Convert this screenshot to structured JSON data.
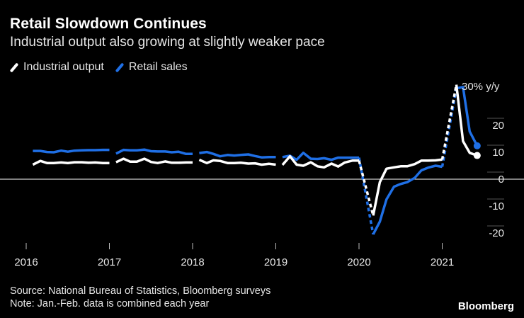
{
  "title": "Retail Slowdown Continues",
  "subtitle": "Industrial output also growing at slightly weaker pace",
  "legend": [
    {
      "label": "Industrial output",
      "color": "#ffffff"
    },
    {
      "label": "Retail sales",
      "color": "#1f6fe5"
    }
  ],
  "source": "Source: National Bureau of Statistics, Bloomberg surveys",
  "note": "Note: Jan.-Feb. data is combined each year",
  "brand": "Bloomberg",
  "chart_data": {
    "type": "line",
    "title": "Retail Slowdown Continues",
    "ylabel": "30% y/y",
    "ylim": [
      -25,
      32
    ],
    "yticks": [
      {
        "v": 20,
        "label": "20"
      },
      {
        "v": 10,
        "label": "10"
      },
      {
        "v": 0,
        "label": "0"
      },
      {
        "v": -10,
        "label": "-10"
      },
      {
        "v": -20,
        "label": "-20"
      }
    ],
    "xlim": [
      2016.0,
      2021.5
    ],
    "xticks": [
      {
        "v": 2016,
        "label": "2016"
      },
      {
        "v": 2017,
        "label": "2017"
      },
      {
        "v": 2018,
        "label": "2018"
      },
      {
        "v": 2019,
        "label": "2019"
      },
      {
        "v": 2020,
        "label": "2020"
      },
      {
        "v": 2021,
        "label": "2021"
      }
    ],
    "series": [
      {
        "name": "Industrial output",
        "color": "#ffffff",
        "segments": [
          {
            "x": [
              2016.08,
              2016.17,
              2016.25,
              2016.33,
              2016.42,
              2016.5,
              2016.58,
              2016.67,
              2016.75,
              2016.83,
              2016.92,
              2017.0
            ],
            "y": [
              5.4,
              6.8,
              6.0,
              6.0,
              6.2,
              6.0,
              6.3,
              6.3,
              6.1,
              6.2,
              6.0,
              6.0
            ],
            "dashed": false
          },
          {
            "x": [
              2017.08,
              2017.17,
              2017.25,
              2017.33,
              2017.42,
              2017.5,
              2017.58,
              2017.67,
              2017.75,
              2017.83,
              2017.92,
              2018.0
            ],
            "y": [
              6.3,
              7.6,
              6.5,
              6.5,
              7.6,
              6.4,
              6.0,
              6.6,
              6.1,
              6.1,
              6.2,
              6.2
            ],
            "dashed": false
          },
          {
            "x": [
              2018.08,
              2018.17,
              2018.25,
              2018.33,
              2018.42,
              2018.5,
              2018.58,
              2018.67,
              2018.75,
              2018.83,
              2018.92,
              2019.0
            ],
            "y": [
              7.2,
              6.0,
              7.0,
              6.8,
              6.0,
              6.0,
              6.1,
              5.8,
              5.9,
              5.4,
              5.7,
              5.4
            ],
            "dashed": false
          },
          {
            "x": [
              2019.08,
              2019.17,
              2019.25,
              2019.33,
              2019.42,
              2019.5,
              2019.58,
              2019.67,
              2019.75,
              2019.83,
              2019.92,
              2020.0
            ],
            "y": [
              5.3,
              8.5,
              5.4,
              5.0,
              6.3,
              4.8,
              4.4,
              5.8,
              4.7,
              6.2,
              6.9,
              6.9
            ],
            "dashed": false
          },
          {
            "x": [
              2020.0,
              2020.17
            ],
            "y": [
              6.9,
              -13.5
            ],
            "dashed": true
          },
          {
            "x": [
              2020.17,
              2020.25,
              2020.33,
              2020.42,
              2020.5,
              2020.58,
              2020.67,
              2020.75,
              2020.83,
              2020.92,
              2021.0
            ],
            "y": [
              -13.5,
              -1.1,
              3.9,
              4.4,
              4.8,
              4.8,
              5.6,
              6.9,
              6.9,
              7.0,
              7.3
            ],
            "dashed": false
          },
          {
            "x": [
              2021.0,
              2021.17
            ],
            "y": [
              7.3,
              35.1
            ],
            "dashed": true
          },
          {
            "x": [
              2021.17,
              2021.25,
              2021.33,
              2021.42
            ],
            "y": [
              35.1,
              14.1,
              9.8,
              8.8
            ],
            "dashed": false
          }
        ],
        "end_marker": {
          "x": 2021.42,
          "y": 8.8
        }
      },
      {
        "name": "Retail sales",
        "color": "#1f6fe5",
        "segments": [
          {
            "x": [
              2016.08,
              2016.17,
              2016.25,
              2016.33,
              2016.42,
              2016.5,
              2016.58,
              2016.67,
              2016.75,
              2016.83,
              2016.92,
              2017.0
            ],
            "y": [
              10.5,
              10.5,
              10.1,
              10.0,
              10.6,
              10.2,
              10.6,
              10.7,
              10.8,
              10.8,
              10.9,
              10.9
            ],
            "dashed": false
          },
          {
            "x": [
              2017.08,
              2017.17,
              2017.25,
              2017.33,
              2017.42,
              2017.5,
              2017.58,
              2017.67,
              2017.75,
              2017.83,
              2017.92,
              2018.0
            ],
            "y": [
              9.5,
              10.9,
              10.7,
              10.7,
              11.0,
              10.4,
              10.3,
              10.3,
              10.0,
              10.2,
              9.4,
              9.4
            ],
            "dashed": false
          },
          {
            "x": [
              2018.08,
              2018.17,
              2018.25,
              2018.33,
              2018.42,
              2018.5,
              2018.58,
              2018.67,
              2018.75,
              2018.83,
              2018.92,
              2019.0
            ],
            "y": [
              9.7,
              10.1,
              9.4,
              8.5,
              9.0,
              8.8,
              9.0,
              9.2,
              8.6,
              8.1,
              8.2,
              8.2
            ],
            "dashed": false
          },
          {
            "x": [
              2019.08,
              2019.17,
              2019.25,
              2019.33,
              2019.42,
              2019.5,
              2019.58,
              2019.67,
              2019.75,
              2019.83,
              2019.92,
              2020.0
            ],
            "y": [
              8.2,
              8.7,
              7.2,
              9.8,
              7.6,
              7.5,
              7.8,
              7.2,
              8.0,
              8.0,
              8.0,
              8.0
            ],
            "dashed": false
          },
          {
            "x": [
              2020.0,
              2020.17
            ],
            "y": [
              8.0,
              -20.5
            ],
            "dashed": true
          },
          {
            "x": [
              2020.17,
              2020.25,
              2020.33,
              2020.42,
              2020.5,
              2020.58,
              2020.67,
              2020.75,
              2020.83,
              2020.92,
              2021.0
            ],
            "y": [
              -20.5,
              -15.8,
              -7.5,
              -2.8,
              -1.8,
              -1.1,
              0.5,
              3.3,
              4.3,
              5.0,
              4.6
            ],
            "dashed": false
          },
          {
            "x": [
              2021.0,
              2021.17
            ],
            "y": [
              4.6,
              33.8
            ],
            "dashed": true
          },
          {
            "x": [
              2021.17,
              2021.25,
              2021.33,
              2021.42
            ],
            "y": [
              33.8,
              34.2,
              17.7,
              12.4
            ],
            "dashed": false
          }
        ],
        "end_marker": {
          "x": 2021.42,
          "y": 12.4
        }
      }
    ]
  }
}
